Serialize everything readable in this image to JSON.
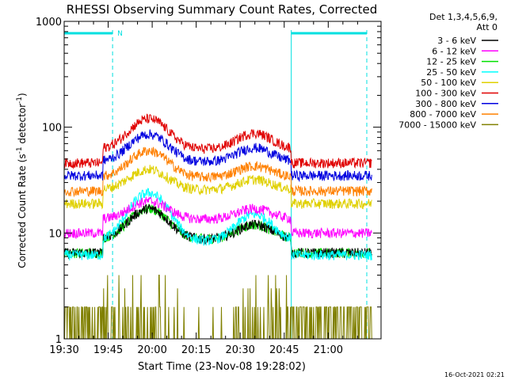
{
  "chart_data": {
    "type": "line",
    "title": "RHESSI Observing Summary Count Rates, Corrected",
    "xlabel": "Start Time (23-Nov-08 19:28:02)",
    "ylabel_main": "Corrected Count Rate (s",
    "ylabel_sup1": "-1",
    "ylabel_mid": " detector",
    "ylabel_sup2": "-1",
    "ylabel_end": ")",
    "x_range_min": [
      19.5,
      21.3
    ],
    "y_scale": "log",
    "ylim": [
      1,
      1000
    ],
    "x_ticks": [
      {
        "value": 19.5,
        "label": "19:30"
      },
      {
        "value": 19.75,
        "label": "19:45"
      },
      {
        "value": 20.0,
        "label": "20:00"
      },
      {
        "value": 20.25,
        "label": "20:15"
      },
      {
        "value": 20.5,
        "label": "20:30"
      },
      {
        "value": 20.75,
        "label": "20:45"
      },
      {
        "value": 21.0,
        "label": "21:00"
      }
    ],
    "y_ticks": [
      {
        "value": 1,
        "label": "1"
      },
      {
        "value": 10,
        "label": "10"
      },
      {
        "value": 100,
        "label": "100"
      },
      {
        "value": 1000,
        "label": "1000"
      }
    ],
    "legend_header": [
      "Det 1,3,4,5,6,9,",
      "Att 0"
    ],
    "legend_placement": "right",
    "timestamp": "16-Oct-2021 02:21",
    "night_marker": "N",
    "night_intervals_hours": [
      [
        19.5,
        19.775
      ],
      [
        20.79,
        21.25
      ]
    ],
    "series": [
      {
        "name": "3 - 6 keV",
        "color": "#000000",
        "base": 6.5,
        "peak1": 17,
        "peak2": 12
      },
      {
        "name": "6 - 12 keV",
        "color": "#ff00ff",
        "base": 10,
        "peak1": 20,
        "peak2": 17
      },
      {
        "name": "12 - 25 keV",
        "color": "#00e000",
        "base": 6.5,
        "peak1": 17,
        "peak2": 12
      },
      {
        "name": "25 - 50 keV",
        "color": "#00ffff",
        "base": 6.2,
        "peak1": 24,
        "peak2": 15
      },
      {
        "name": "50 - 100 keV",
        "color": "#e0d000",
        "base": 19,
        "peak1": 40,
        "peak2": 32
      },
      {
        "name": "100 - 300 keV",
        "color": "#e00000",
        "base": 46,
        "peak1": 120,
        "peak2": 88
      },
      {
        "name": "300 - 800 keV",
        "color": "#0000e0",
        "base": 35,
        "peak1": 86,
        "peak2": 64
      },
      {
        "name": "800 - 7000 keV",
        "color": "#ff8000",
        "base": 25,
        "peak1": 60,
        "peak2": 43
      },
      {
        "name": "7000 - 15000 keV",
        "color": "#808000",
        "base": 1,
        "peak1": 3.5,
        "peak2": 2
      }
    ]
  }
}
